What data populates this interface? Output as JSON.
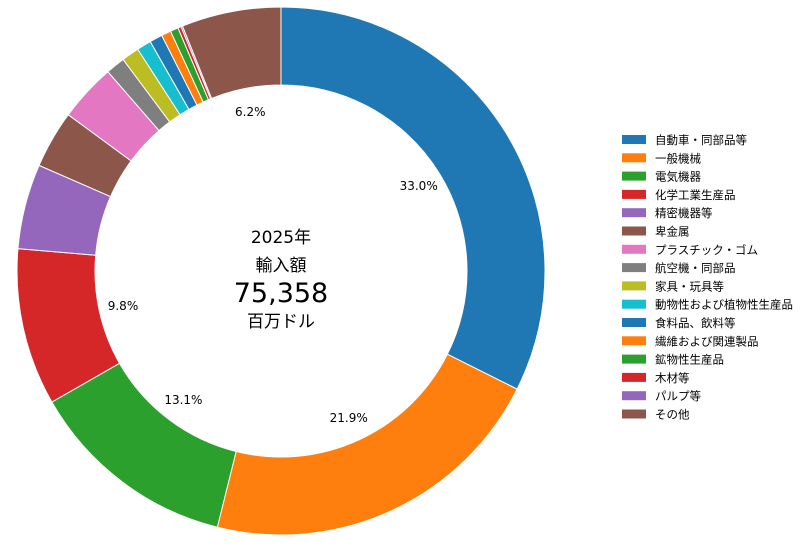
{
  "chart_data": {
    "type": "pie",
    "variant": "donut",
    "center": {
      "year": "2025年",
      "label": "輸入額",
      "value": "75,358",
      "unit": "百万ドル"
    },
    "legend_position": "right",
    "slices": [
      {
        "name": "自動車・同部品等",
        "value": 33.0,
        "label": "33.0%",
        "color": "#1f77b4"
      },
      {
        "name": "一般機械",
        "value": 21.9,
        "label": "21.9%",
        "color": "#ff7f0e"
      },
      {
        "name": "電気機器",
        "value": 13.1,
        "label": "13.1%",
        "color": "#2ca02c"
      },
      {
        "name": "化学工業生産品",
        "value": 9.8,
        "label": "9.8%",
        "color": "#d62728"
      },
      {
        "name": "精密機器等",
        "value": 5.3,
        "label": "",
        "color": "#9467bd"
      },
      {
        "name": "卑金属",
        "value": 3.6,
        "label": "",
        "color": "#8c564b"
      },
      {
        "name": "プラスチック・ゴム",
        "value": 3.6,
        "label": "",
        "color": "#e377c2"
      },
      {
        "name": "航空機・同部品",
        "value": 1.2,
        "label": "",
        "color": "#7f7f7f"
      },
      {
        "name": "家具・玩具等",
        "value": 1.1,
        "label": "",
        "color": "#bcbd22"
      },
      {
        "name": "動物性および植物性生産品",
        "value": 0.9,
        "label": "",
        "color": "#17becf"
      },
      {
        "name": "食料品、飲料等",
        "value": 0.8,
        "label": "",
        "color": "#1f77b4"
      },
      {
        "name": "繊維および関連製品",
        "value": 0.6,
        "label": "",
        "color": "#ff7f0e"
      },
      {
        "name": "鉱物性生産品",
        "value": 0.5,
        "label": "",
        "color": "#2ca02c"
      },
      {
        "name": "木材等",
        "value": 0.2,
        "label": "",
        "color": "#d62728"
      },
      {
        "name": "パルプ等",
        "value": 0.1,
        "label": "",
        "color": "#9467bd"
      },
      {
        "name": "その他",
        "value": 6.2,
        "label": "6.2%",
        "color": "#8c564b"
      }
    ]
  }
}
